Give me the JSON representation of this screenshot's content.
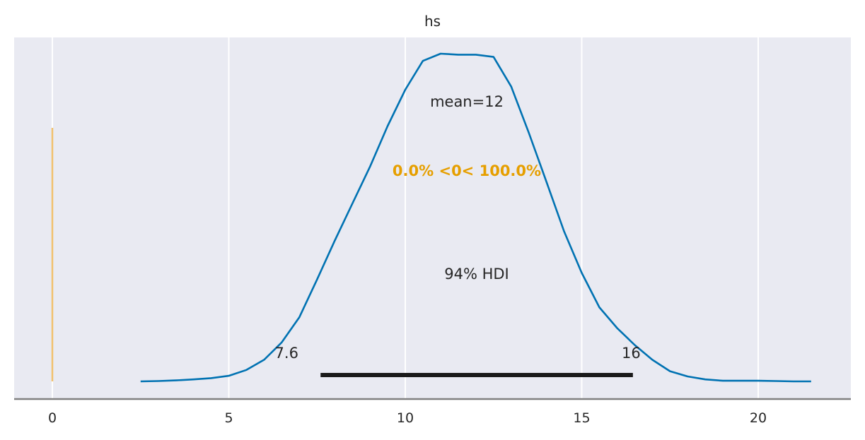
{
  "chart_data": {
    "type": "area",
    "title": "hs",
    "xlabel": "",
    "ylabel": "",
    "xlim": [
      -1.1,
      22.6
    ],
    "x_ticks": [
      0,
      5,
      10,
      15,
      20
    ],
    "grid": true,
    "y_ticks_visible": false,
    "density": {
      "x": [
        2.5,
        3.0,
        3.5,
        4.0,
        4.5,
        5.0,
        5.5,
        6.0,
        6.5,
        7.0,
        7.5,
        8.0,
        8.5,
        9.0,
        9.5,
        10.0,
        10.5,
        11.0,
        11.5,
        12.0,
        12.5,
        13.0,
        13.5,
        14.0,
        14.5,
        15.0,
        15.5,
        16.0,
        16.5,
        17.0,
        17.5,
        18.0,
        18.5,
        19.0,
        19.5,
        20.0,
        20.5,
        21.0,
        21.5
      ],
      "y": [
        0.0,
        0.001,
        0.003,
        0.006,
        0.01,
        0.017,
        0.035,
        0.066,
        0.119,
        0.196,
        0.311,
        0.429,
        0.542,
        0.655,
        0.779,
        0.89,
        0.978,
        1.0,
        0.997,
        0.997,
        0.99,
        0.9,
        0.759,
        0.609,
        0.458,
        0.331,
        0.226,
        0.163,
        0.111,
        0.066,
        0.031,
        0.015,
        0.006,
        0.002,
        0.002,
        0.002,
        0.001,
        0.0,
        0.0
      ],
      "color": "#0072b2"
    },
    "mean": 12,
    "mean_label": "mean=12",
    "hdi": {
      "label": "94% HDI",
      "lower": 7.6,
      "upper": 16,
      "lower_label": "7.6",
      "upper_label": "16",
      "line_start": 7.6,
      "line_end": 16.45
    },
    "ref_val": {
      "value": 0,
      "label": "0.0% <0< 100.0%",
      "color": "#e69f00",
      "line_color": "#f2c16e"
    },
    "background_color": "#e9eaf2"
  }
}
